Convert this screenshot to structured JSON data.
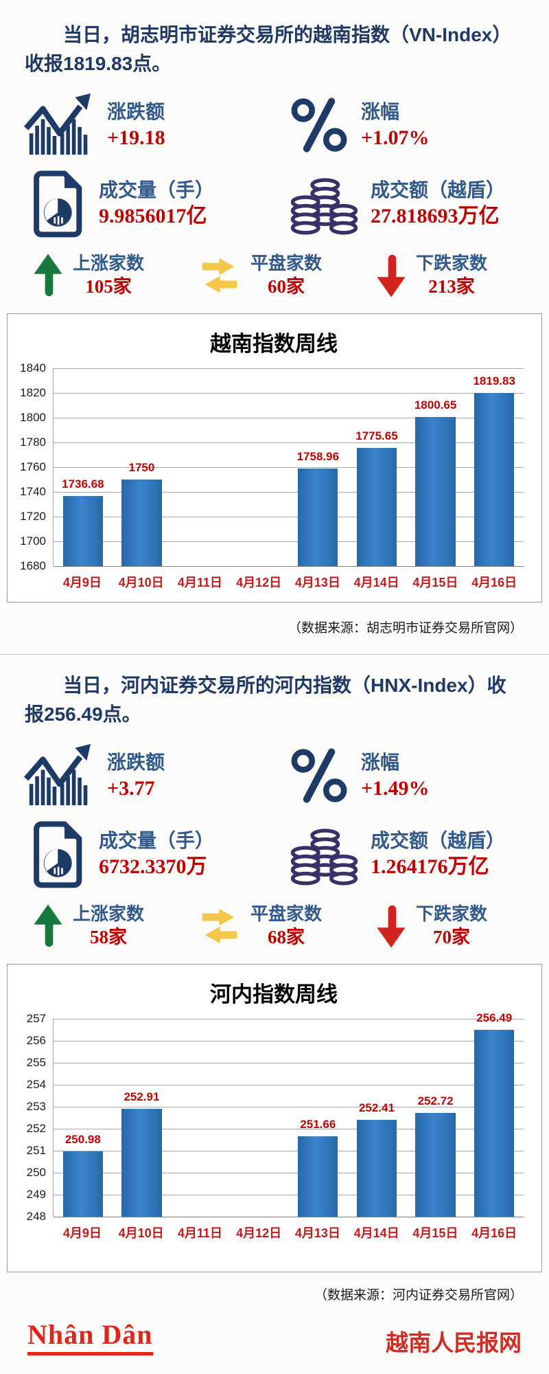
{
  "section1": {
    "title": "当日，胡志明市证券交易所的越南指数（VN-Index）收报1819.83点。",
    "stats": [
      {
        "icon": "trend-chart-icon",
        "label": "涨跌额",
        "value": "+19.18"
      },
      {
        "icon": "percent-icon",
        "label": "涨幅",
        "value": "+1.07%"
      },
      {
        "icon": "volume-document-icon",
        "label": "成交量（手）",
        "value": "9.9856017亿"
      },
      {
        "icon": "coins-icon",
        "label": "成交额（越盾）",
        "value": "27.818693万亿"
      }
    ],
    "breadth": [
      {
        "icon": "up-arrow-icon",
        "label": "上涨家数",
        "value": "105家"
      },
      {
        "icon": "flat-arrows-icon",
        "label": "平盘家数",
        "value": "60家"
      },
      {
        "icon": "down-arrow-icon",
        "label": "下跌家数",
        "value": "213家"
      }
    ],
    "source": "（数据来源：胡志明市证券交易所官网）"
  },
  "section2": {
    "title": "当日，河内证券交易所的河内指数（HNX-Index）收报256.49点。",
    "stats": [
      {
        "icon": "trend-chart-icon",
        "label": "涨跌额",
        "value": "+3.77"
      },
      {
        "icon": "percent-icon",
        "label": "涨幅",
        "value": "+1.49%"
      },
      {
        "icon": "volume-document-icon",
        "label": "成交量（手）",
        "value": "6732.3370万"
      },
      {
        "icon": "coins-icon",
        "label": "成交额（越盾）",
        "value": "1.264176万亿"
      }
    ],
    "breadth": [
      {
        "icon": "up-arrow-icon",
        "label": "上涨家数",
        "value": "58家"
      },
      {
        "icon": "flat-arrows-icon",
        "label": "平盘家数",
        "value": "68家"
      },
      {
        "icon": "down-arrow-icon",
        "label": "下跌家数",
        "value": "70家"
      }
    ],
    "source": "（数据来源：河内证券交易所官网）"
  },
  "chart_data": [
    {
      "type": "bar",
      "title": "越南指数周线",
      "categories": [
        "4月9日",
        "4月10日",
        "4月11日",
        "4月12日",
        "4月13日",
        "4月14日",
        "4月15日",
        "4月16日"
      ],
      "values": [
        1736.68,
        1750,
        null,
        null,
        1758.96,
        1775.65,
        1800.65,
        1819.83
      ],
      "labels": [
        "1736.68",
        "1750",
        "",
        "",
        "1758.96",
        "1775.65",
        "1800.65",
        "1819.83"
      ],
      "ylim": [
        1680,
        1840
      ],
      "ytick_step": 20,
      "grid": true,
      "legend": false,
      "bar_color": "#2e75b6",
      "label_color": "#c00000"
    },
    {
      "type": "bar",
      "title": "河内指数周线",
      "categories": [
        "4月9日",
        "4月10日",
        "4月11日",
        "4月12日",
        "4月13日",
        "4月14日",
        "4月15日",
        "4月16日"
      ],
      "values": [
        250.98,
        252.91,
        null,
        null,
        251.66,
        252.41,
        252.72,
        256.49
      ],
      "labels": [
        "250.98",
        "252.91",
        "",
        "",
        "251.66",
        "252.41",
        "252.72",
        "256.49"
      ],
      "ylim": [
        248,
        257
      ],
      "ytick_step": 1,
      "grid": true,
      "legend": false,
      "bar_color": "#2e75b6",
      "label_color": "#c00000"
    }
  ],
  "footer": {
    "logo_text": "Nhân Dân",
    "site_name": "越南人民报网"
  },
  "colors": {
    "title_navy": "#1f3864",
    "stat_label_blue": "#31598a",
    "value_red": "#c00000",
    "bar_blue": "#2e75b6",
    "up_green": "#17793d",
    "flat_yellow": "#f4c64a",
    "down_red": "#d2231d",
    "coin_indigo": "#3a3068",
    "footer_red": "#e2241b"
  }
}
